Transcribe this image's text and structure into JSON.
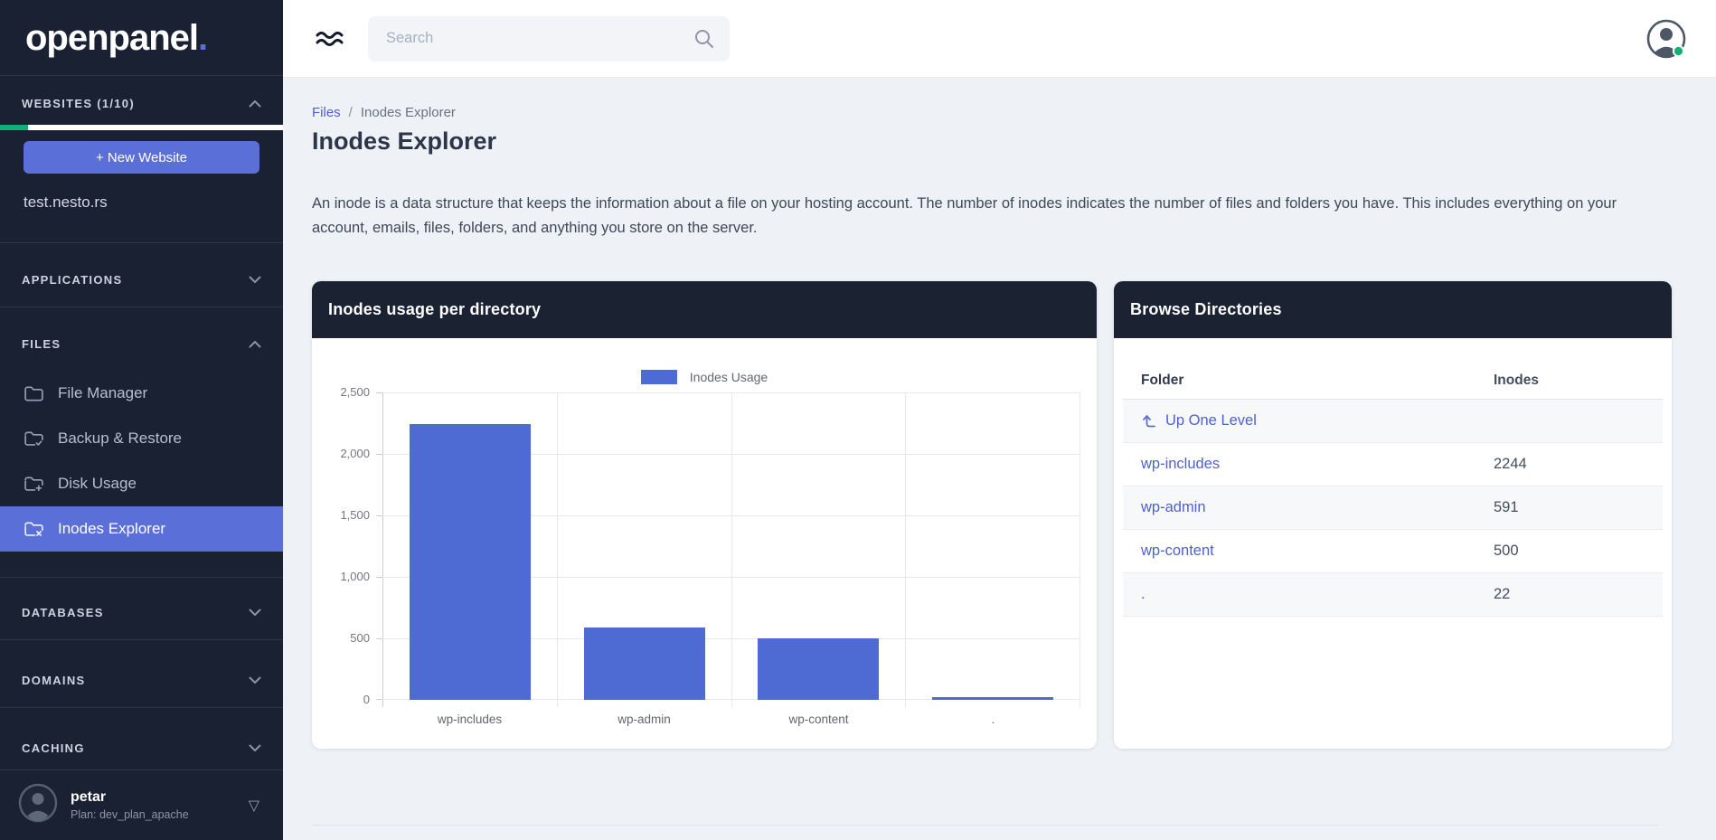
{
  "colors": {
    "accent": "#5b6fd9",
    "bar": "#4d6bd2",
    "green": "#12b076",
    "header_dark": "#1b2232"
  },
  "sidebar": {
    "logo": "openpanel",
    "logo_dot": ".",
    "websites": {
      "label": "WEBSITES (1/10)",
      "progress_pct": 10
    },
    "new_website_label": "+ New Website",
    "site": "test.nesto.rs",
    "sections": [
      {
        "label": "APPLICATIONS",
        "state": "collapsed"
      },
      {
        "label": "FILES",
        "state": "expanded"
      },
      {
        "label": "DATABASES",
        "state": "collapsed"
      },
      {
        "label": "DOMAINS",
        "state": "collapsed"
      },
      {
        "label": "CACHING",
        "state": "collapsed"
      }
    ],
    "files_items": [
      {
        "label": "File Manager",
        "icon": "folder-icon",
        "active": false
      },
      {
        "label": "Backup & Restore",
        "icon": "folder-check-icon",
        "active": false
      },
      {
        "label": "Disk Usage",
        "icon": "folder-plus-icon",
        "active": false
      },
      {
        "label": "Inodes Explorer",
        "icon": "folder-x-icon",
        "active": true
      }
    ],
    "user": {
      "name": "petar",
      "plan": "Plan: dev_plan_apache"
    }
  },
  "topbar": {
    "search_placeholder": "Search"
  },
  "page": {
    "breadcrumb": {
      "parent": "Files",
      "separator": "/",
      "current": "Inodes Explorer"
    },
    "title": "Inodes Explorer",
    "description": "An inode is a data structure that keeps the information about a file on your hosting account. The number of inodes indicates the number of files and folders you have. This includes everything on your account, emails, files, folders, and anything you store on the server."
  },
  "chart_card": {
    "title": "Inodes usage per directory"
  },
  "chart_data": {
    "type": "bar",
    "title": "Inodes usage per directory",
    "series_name": "Inodes Usage",
    "categories": [
      "wp-includes",
      "wp-admin",
      "wp-content",
      "."
    ],
    "values": [
      2244,
      591,
      500,
      22
    ],
    "xlabel": "",
    "ylabel": "",
    "ylim": [
      0,
      2500
    ],
    "ytick_step": 500,
    "bar_color": "#4d6bd2",
    "grid": true,
    "legend_position": "top-center"
  },
  "browse_card": {
    "title": "Browse Directories",
    "columns": [
      "Folder",
      "Inodes"
    ],
    "up_link": "Up One Level",
    "rows": [
      {
        "folder": "wp-includes",
        "inodes": "2244"
      },
      {
        "folder": "wp-admin",
        "inodes": "591"
      },
      {
        "folder": "wp-content",
        "inodes": "500"
      },
      {
        "folder": ".",
        "inodes": "22"
      }
    ]
  }
}
